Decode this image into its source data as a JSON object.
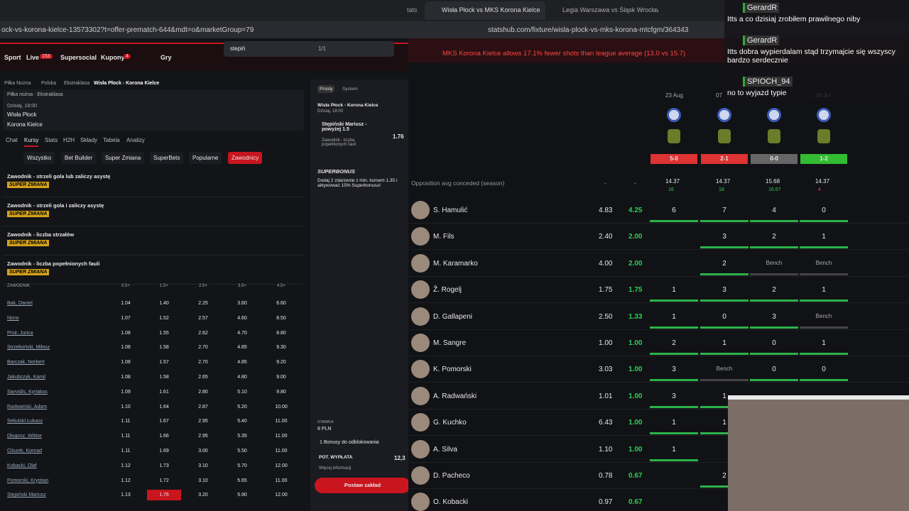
{
  "left_browser": {
    "url": "ock-vs-korona-kielce-13573302?t=offer-prematch-644&mdt=o&marketGroup=79",
    "find_text": "stepiń",
    "find_count": "1/1",
    "partial_tab": "tats"
  },
  "nav": {
    "items": [
      "Sport",
      "Live",
      "Supersocial",
      "Kupony",
      "Gry"
    ],
    "live_count": "153",
    "coupon_count": "4"
  },
  "breadcrumb": [
    "Piłka Nożna",
    "Polska",
    "Ekstraklasa",
    "Wisła Płock - Korona Kielce"
  ],
  "match": {
    "league": "Piłka nożna · Ekstraklasa",
    "time": "Dzisiaj, 18:00",
    "home": "Wisła Płock",
    "away": "Korona Kielce"
  },
  "tabs": [
    "Chat",
    "Kursy",
    "Stats",
    "H2H",
    "Składy",
    "Tabela",
    "Analizy"
  ],
  "filters": [
    "Wszystko",
    "Bet Builder",
    "Super Zmiana",
    "SuperBets",
    "Popularne",
    "Zawodnicy"
  ],
  "badge": "SUPER ZMIANA",
  "markets": [
    "Zawodnik - strzeli gola lub zaliczy asystę",
    "Zawodnik - strzeli gola i zaliczy asystę",
    "Zawodnik - liczba strzałów",
    "Zawodnik - liczba popełnionych fauli"
  ],
  "odds_table": {
    "header": "ZAWODNIK",
    "columns": [
      "0.5+",
      "1.5+",
      "2.5+",
      "3.5+",
      "4.5+"
    ],
    "rows": [
      [
        "Bak, Daniel",
        "1.04",
        "1.40",
        "2.25",
        "3.60",
        "6.60"
      ],
      [
        "Nono",
        "1.07",
        "1.52",
        "2.57",
        "4.60",
        "8.50"
      ],
      [
        "Prsir, Jurica",
        "1.08",
        "1.55",
        "2.62",
        "4.70",
        "8.80"
      ],
      [
        "Strzeboński, Miłosz",
        "1.08",
        "1.58",
        "2.70",
        "4.85",
        "9.30"
      ],
      [
        "Barczak, Norbert",
        "1.08",
        "1.57",
        "2.70",
        "4.85",
        "9.20"
      ],
      [
        "Jakubczyk, Kamil",
        "1.08",
        "1.58",
        "2.65",
        "4.80",
        "9.00"
      ],
      [
        "Savvidis, Kyriakos",
        "1.09",
        "1.61",
        "2.80",
        "5.10",
        "9.80"
      ],
      [
        "Radwański, Adam",
        "1.10",
        "1.64",
        "2.87",
        "5.20",
        "10.00"
      ],
      [
        "Sekulski Łukasz",
        "1.11",
        "1.67",
        "2.95",
        "5.40",
        "11.00"
      ],
      [
        "Długosz, Wiktor",
        "1.11",
        "1.66",
        "2.95",
        "5.35",
        "11.00"
      ],
      [
        "Cliszek, Konrad",
        "1.11",
        "1.69",
        "3.00",
        "5.50",
        "11.00"
      ],
      [
        "Kobacki, Olaf",
        "1.12",
        "1.73",
        "3.10",
        "5.70",
        "12.00"
      ],
      [
        "Pomorski, Krystian",
        "1.12",
        "1.72",
        "3.10",
        "5.65",
        "11.00"
      ],
      [
        "Stępiński Mariusz",
        "1.13",
        "1.76",
        "3.20",
        "5.90",
        "12.00"
      ]
    ]
  },
  "betslip": {
    "modes": [
      "Prosty",
      "System"
    ],
    "match": "Wisła Płock - Korona Kielce",
    "time": "Dzisiaj, 18:00",
    "selection": "Stępiński Mariusz - powyżej 1.5",
    "odds": "1.76",
    "market": "Zawodnik - liczba popełnionych fauli",
    "superbonus_title": "SUPERBONUS",
    "superbonus_text": "Dodaj 2 zdarzenie z min. kursem 1.35 i aktywować 15% Superbonusu!",
    "stake_label": "STAWKA",
    "stake": "8 PLN",
    "bonuses": "1 Bonusy do odblokowania",
    "payout_label": "POT. WYPŁATA",
    "payout": "12,3",
    "more_info": "Więcej informacji",
    "place_bet": "Postaw zakład"
  },
  "right_browser": {
    "tabs": [
      "Wisła Płock vs MKS Korona Kielce",
      "Legia Warszawa vs Śląsk Wrocław Li"
    ],
    "url": "statshub.com/fixture/wisla-plock-vs-mks-korona-mtcfgm/364343"
  },
  "stats": {
    "banner": "MKS Korona Kielce allows 17.1% fewer shots than league average (13.0 vs 15.7)",
    "dates": [
      "23 Aug",
      "07",
      null,
      "26 Jul"
    ],
    "results": [
      "5-0",
      "2-1",
      "0-0",
      "1-2"
    ],
    "season_label": "Opposition avg conceded (season)",
    "season_dashes": [
      "-",
      "-"
    ],
    "season_avg": [
      "14.37",
      "14.37",
      "15.68",
      "14.37"
    ],
    "season_sub": [
      "16",
      "18",
      "16.67",
      "4"
    ],
    "players": [
      {
        "name": "S. Hamulić",
        "avg": "4.83",
        "line": "4.25",
        "cells": [
          "6",
          "7",
          "4",
          "0"
        ]
      },
      {
        "name": "M. Fils",
        "avg": "2.40",
        "line": "2.00",
        "cells": [
          null,
          "3",
          "2",
          "1"
        ]
      },
      {
        "name": "M. Karamarko",
        "avg": "4.00",
        "line": "2.00",
        "cells": [
          null,
          "2",
          "Bench",
          "Bench"
        ]
      },
      {
        "name": "Ž. Rogelj",
        "avg": "1.75",
        "line": "1.75",
        "cells": [
          "1",
          "3",
          "2",
          "1"
        ]
      },
      {
        "name": "D. Gallapeni",
        "avg": "2.50",
        "line": "1.33",
        "cells": [
          "1",
          "0",
          "3",
          "Bench"
        ]
      },
      {
        "name": "M. Sangre",
        "avg": "1.00",
        "line": "1.00",
        "cells": [
          "2",
          "1",
          "0",
          "1"
        ]
      },
      {
        "name": "K. Pomorski",
        "avg": "3.03",
        "line": "1.00",
        "cells": [
          "3",
          "Bench",
          "0",
          "0"
        ]
      },
      {
        "name": "A. Radwański",
        "avg": "1.01",
        "line": "1.00",
        "cells": [
          "3",
          "1",
          null,
          null
        ]
      },
      {
        "name": "G. Kuchko",
        "avg": "6.43",
        "line": "1.00",
        "cells": [
          "1",
          "1",
          null,
          null
        ]
      },
      {
        "name": "A. Silva",
        "avg": "1.10",
        "line": "1.00",
        "cells": [
          "1",
          null,
          null,
          null
        ]
      },
      {
        "name": "D. Pacheco",
        "avg": "0.78",
        "line": "0.67",
        "cells": [
          null,
          "2",
          null,
          null
        ]
      },
      {
        "name": "O. Kobacki",
        "avg": "0.97",
        "line": "0.67",
        "cells": [
          null,
          null,
          null,
          null
        ]
      }
    ]
  },
  "chat": [
    {
      "user": "GerardR",
      "text": "Itts a co dzisiaj zrobiłem prawilnego niby"
    },
    {
      "user": "GerardR",
      "text": "Itts dobra wypierdalam stąd trzymajcie się wszyscy bardzo serdecznie"
    },
    {
      "user": "SPIOCH_94",
      "text": "no to wyjazd typie"
    }
  ]
}
